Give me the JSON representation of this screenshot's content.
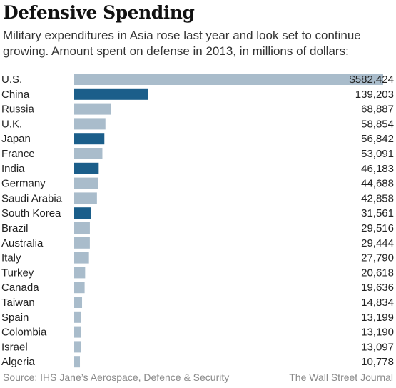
{
  "header": {
    "title": "Defensive Spending",
    "subtitle": "Military expenditures in Asia rose last year and look set to continue growing. Amount spent on defense in 2013, in millions of dollars:"
  },
  "footer": {
    "source": "Source: IHS Jane’s Aerospace, Defence & Security",
    "credit": "The Wall Street Journal"
  },
  "colors": {
    "asia": "#1b5e8a",
    "other": "#a9bccb"
  },
  "chart_data": {
    "type": "bar",
    "orientation": "horizontal",
    "title": "Defensive Spending",
    "categories": [
      "U.S.",
      "China",
      "Russia",
      "U.K.",
      "Japan",
      "France",
      "India",
      "Germany",
      "Saudi Arabia",
      "South Korea",
      "Brazil",
      "Australia",
      "Italy",
      "Turkey",
      "Canada",
      "Taiwan",
      "Spain",
      "Colombia",
      "Israel",
      "Algeria"
    ],
    "values": [
      582424,
      139203,
      68887,
      58854,
      56842,
      53091,
      46183,
      44688,
      42858,
      31561,
      29516,
      29444,
      27790,
      20618,
      19636,
      14834,
      13199,
      13190,
      13097,
      10778
    ],
    "value_labels": [
      "$582,424",
      "139,203",
      "68,887",
      "58,854",
      "56,842",
      "53,091",
      "46,183",
      "44,688",
      "42,858",
      "31,561",
      "29,516",
      "29,444",
      "27,790",
      "20,618",
      "19,636",
      "14,834",
      "13,199",
      "13,190",
      "13,097",
      "10,778"
    ],
    "highlighted": [
      false,
      true,
      false,
      false,
      true,
      false,
      true,
      false,
      false,
      true,
      false,
      false,
      false,
      false,
      false,
      false,
      false,
      false,
      false,
      false
    ],
    "xlim": [
      0,
      582424
    ],
    "grid": false
  }
}
